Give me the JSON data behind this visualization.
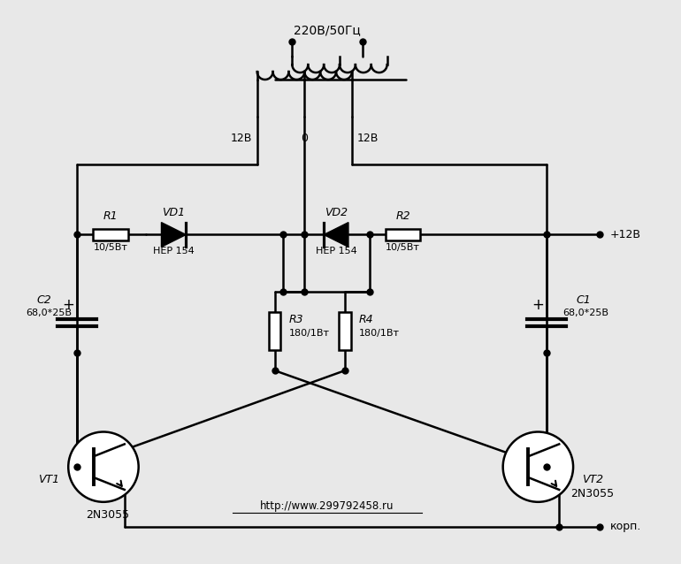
{
  "background_color": "#e8e8e8",
  "line_color": "#000000",
  "line_width": 1.8,
  "dot_size": 5,
  "components": {
    "transformer_label": "220В/50Гц",
    "R1_label": "R1",
    "R1_val": "10/5Вт",
    "R2_label": "R2",
    "R2_val": "10/5Вт",
    "VD1_label": "VD1",
    "VD1_val": "HEP 154",
    "VD2_label": "VD2",
    "VD2_val": "HEP 154",
    "C1_label": "C1",
    "C1_val": "68,0*25В",
    "C2_label": "C2",
    "C2_val": "68,0*25В",
    "R3_label": "R3",
    "R3_val": "180/1Вт",
    "R4_label": "R4",
    "R4_val": "180/1Вт",
    "VT1_label": "VT1",
    "VT1_val": "2N3055",
    "VT2_label": "VT2",
    "VT2_val": "2N3055",
    "label_12V_left": "12В",
    "label_0": "0",
    "label_12V_right": "12В",
    "label_plus12V": "+12В",
    "label_corp": "корп.",
    "url": "http://www.299792458.ru"
  }
}
